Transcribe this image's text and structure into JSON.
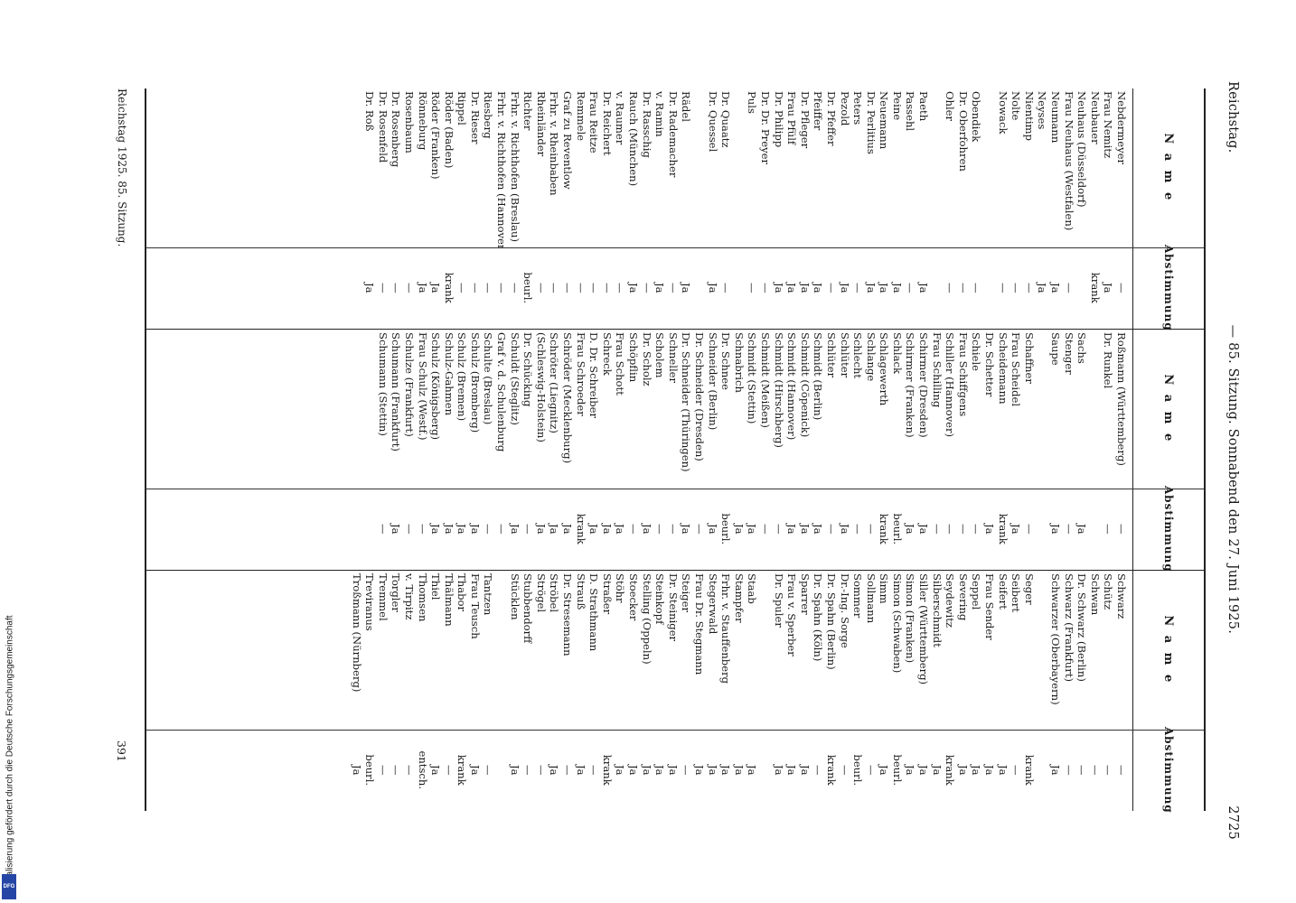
{
  "header": {
    "left": "Reichstag.",
    "center": "— 85. Sitzung. Sonnabend den 27. Juni 1925.",
    "page_number": "2725"
  },
  "column_header_name": "N a m e",
  "column_header_vote": "Abstimmung",
  "blocks": [
    [
      [
        "Nebdermeyer",
        "—"
      ],
      [
        "Frau Nemitz",
        "Ja"
      ],
      [
        "Neubauer",
        "krank"
      ],
      [
        "Neuhaus (Düsseldorf)",
        ""
      ],
      [
        "Frau Neuhaus (Westfalen)",
        "—"
      ],
      [
        "Neumann",
        "Ja"
      ],
      [
        "Neyses",
        "Ja"
      ],
      [
        "Nientimp",
        "—"
      ],
      [
        "Nolte",
        "—"
      ],
      [
        "Nowack",
        "—"
      ],
      [
        "",
        ""
      ],
      [
        "Obendiek",
        "—"
      ],
      [
        "Dr. Oberfohren",
        "—"
      ],
      [
        "Ohler",
        "—"
      ],
      [
        "",
        ""
      ],
      [
        "Paeth",
        "Ja"
      ],
      [
        "Passehl",
        "—"
      ],
      [
        "Peine",
        "Ja"
      ],
      [
        "Neuemann",
        "Ja"
      ],
      [
        "Dr. Perlitius",
        "Ja"
      ],
      [
        "Peters",
        "—"
      ],
      [
        "Pezold",
        "Ja"
      ],
      [
        "Dr. Pfeffer",
        "—"
      ],
      [
        "Pfeiffer",
        "Ja"
      ],
      [
        "Dr. Pfleger",
        "Ja"
      ],
      [
        "Frau Pfülf",
        "Ja"
      ],
      [
        "Dr. Philipp",
        "Ja"
      ],
      [
        "Dr. Dr. Preyer",
        "—"
      ],
      [
        "Puls",
        "—"
      ],
      [
        "",
        ""
      ],
      [
        "Dr. Quaatz",
        "—"
      ],
      [
        "Dr. Quessel",
        "Ja"
      ],
      [
        "",
        ""
      ],
      [
        "Rädel",
        "Ja"
      ],
      [
        "Dr. Rademacher",
        "—"
      ],
      [
        "v. Ramin",
        "Ja"
      ],
      [
        "Dr. Rasschig",
        "—"
      ],
      [
        "Rauch (München)",
        "Ja"
      ],
      [
        "v. Raumer",
        "—"
      ],
      [
        "Dr. Reichert",
        "—"
      ],
      [
        "Frau Reitze",
        "—"
      ],
      [
        "Remmele",
        "—"
      ],
      [
        "Graf zu Reventlow",
        "—"
      ],
      [
        "Frhr. v. Rheinbaben",
        "—"
      ],
      [
        "Rheinländer",
        "—"
      ],
      [
        "Richter",
        "beurl."
      ],
      [
        "Frhr. v. Richthofen (Breslau)",
        "—"
      ],
      [
        "Frhr. v. Richthofen (Hannover)",
        "—"
      ],
      [
        "Riesberg",
        "—"
      ],
      [
        "Dr. Rieser",
        "—"
      ],
      [
        "Rippel",
        "—"
      ],
      [
        "Röder (Baden)",
        "krank"
      ],
      [
        "Röder (Franken)",
        "Ja"
      ],
      [
        "Rönneburg",
        "Ja"
      ],
      [
        "Rosenbaum",
        "—"
      ],
      [
        "Dr. Rosenberg",
        "—"
      ],
      [
        "Dr. Rosenfeld",
        "—"
      ],
      [
        "Dr. Roß",
        "Ja"
      ]
    ],
    [
      [
        "Roßmann (Württemberg)",
        "—"
      ],
      [
        "Dr. Runkel",
        "—"
      ],
      [
        "",
        ""
      ],
      [
        "Sachs",
        "Ja"
      ],
      [
        "Stenger",
        "—"
      ],
      [
        "Saupe",
        "Ja"
      ],
      [
        "",
        ""
      ],
      [
        "Schaffner",
        "—"
      ],
      [
        "Frau Scheidel",
        "Ja"
      ],
      [
        "Scheidemann",
        "krank"
      ],
      [
        "Dr. Schetter",
        "Ja"
      ],
      [
        "Schiele",
        "—"
      ],
      [
        "Frau Schiffgens",
        "—"
      ],
      [
        "Schiller (Hannover)",
        "—"
      ],
      [
        "Frau Schilling",
        "—"
      ],
      [
        "Schirmer (Dresden)",
        "Ja"
      ],
      [
        "Schirmer (Franken)",
        "Ja"
      ],
      [
        "Schlack",
        "beurl."
      ],
      [
        "Schlagewerth",
        "krank"
      ],
      [
        "Schlange",
        "—"
      ],
      [
        "Schlecht",
        "—"
      ],
      [
        "Schlüter",
        "Ja"
      ],
      [
        "Schlüter",
        "—"
      ],
      [
        "Schmidt (Berlin)",
        "Ja"
      ],
      [
        "Schmidt (Cöpenick)",
        "Ja"
      ],
      [
        "Schmidt (Hannover)",
        "Ja"
      ],
      [
        "Schmidt (Hirschberg)",
        "—"
      ],
      [
        "Schmidt (Meißen)",
        "—"
      ],
      [
        "Schmidt (Stettin)",
        "Ja"
      ],
      [
        "Schnabrich",
        "Ja"
      ],
      [
        "Dr. Schnee",
        "beurl."
      ],
      [
        "Schneider (Berlin)",
        "Ja"
      ],
      [
        "Dr. Schneider (Dresden)",
        "—"
      ],
      [
        "Dr. Schneider (Thüringen)",
        "Ja"
      ],
      [
        "Schneller",
        "—"
      ],
      [
        "Scholem",
        "—"
      ],
      [
        "Dr. Scholz",
        "Ja"
      ],
      [
        "Schöpflin",
        "—"
      ],
      [
        "Frau Schott",
        "Ja"
      ],
      [
        "Schreck",
        "Ja"
      ],
      [
        "D. Dr. Schreiber",
        "Ja"
      ],
      [
        "Frau Schroeder",
        "krank"
      ],
      [
        "Schröder (Mecklenburg)",
        "Ja"
      ],
      [
        "Schröter (Liegnitz)",
        "Ja"
      ],
      [
        "(Schleswig-Holstein)",
        "Ja"
      ],
      [
        "Dr. Schücking",
        "—"
      ],
      [
        "Schuldt (Steglitz)",
        "Ja"
      ],
      [
        "Graf v. d. Schulenburg",
        "—"
      ],
      [
        "Schulte (Breslau)",
        "—"
      ],
      [
        "Schulz (Bromberg)",
        "Ja"
      ],
      [
        "Schulz (Bremen)",
        "Ja"
      ],
      [
        "Schulz-Gahmen",
        "Ja"
      ],
      [
        "Schulz (Königsberg)",
        "Ja"
      ],
      [
        "Frau Schulz (Westf.)",
        "—"
      ],
      [
        "Schulze (Frankfurt)",
        "—"
      ],
      [
        "Schumann (Frankfurt)",
        "Ja"
      ],
      [
        "Schumann (Stettin)",
        "—"
      ]
    ],
    [
      [
        "Schwarz",
        "—"
      ],
      [
        "Schütz",
        "—"
      ],
      [
        "Schwan",
        "—"
      ],
      [
        "Dr. Schwarz (Berlin)",
        "—"
      ],
      [
        "Schwarz (Frankfurt)",
        "—"
      ],
      [
        "Schwarzer (Oberbayern)",
        "Ja"
      ],
      [
        "",
        ""
      ],
      [
        "Seger",
        "krank"
      ],
      [
        "Seibert",
        "—"
      ],
      [
        "Seifert",
        "Ja"
      ],
      [
        "Frau Sender",
        "Ja"
      ],
      [
        "Seppel",
        "Ja"
      ],
      [
        "Severing",
        "Ja"
      ],
      [
        "Seydewitz",
        "krank"
      ],
      [
        "Silberschmidt",
        "Ja"
      ],
      [
        "Siller (Württemberg)",
        "Ja"
      ],
      [
        "Simon (Franken)",
        "Ja"
      ],
      [
        "Simon (Schwaben)",
        "beurl."
      ],
      [
        "Simm",
        "Ja"
      ],
      [
        "Sollmann",
        "—"
      ],
      [
        "Sommer",
        "beurl."
      ],
      [
        "Dr.-Ing. Sorge",
        "—"
      ],
      [
        "Dr. Spahn (Berlin)",
        "krank"
      ],
      [
        "Dr. Spahn (Köln)",
        "—"
      ],
      [
        "Sparrer",
        "Ja"
      ],
      [
        "Frau v. Sperber",
        "Ja"
      ],
      [
        "Dr. Spuler",
        "Ja"
      ],
      [
        "",
        ""
      ],
      [
        "Staab",
        "Ja"
      ],
      [
        "Stampfer",
        "Ja"
      ],
      [
        "Frhr. v. Stauffenberg",
        "Ja"
      ],
      [
        "Stegerwald",
        "Ja"
      ],
      [
        "Frau Dr. Stegmann",
        "Ja"
      ],
      [
        "Steiger",
        "—"
      ],
      [
        "Dr. Steiniger",
        "Ja"
      ],
      [
        "Steinkopf",
        "Ja"
      ],
      [
        "Stelling (Oppeln)",
        "Ja"
      ],
      [
        "Stoecker",
        "Ja"
      ],
      [
        "Stöhr",
        "Ja"
      ],
      [
        "Straßer",
        "krank"
      ],
      [
        "D. Strathmann",
        "—"
      ],
      [
        "Strauß",
        "Ja"
      ],
      [
        "Dr. Stresemann",
        "—"
      ],
      [
        "Ströbel",
        "Ja"
      ],
      [
        "Strögel",
        "—"
      ],
      [
        "Stubbendorff",
        "—"
      ],
      [
        "Stücklen",
        "Ja"
      ],
      [
        "",
        ""
      ],
      [
        "Tantzen",
        "—"
      ],
      [
        "Frau Teusch",
        "Ja"
      ],
      [
        "Thabor",
        "krank"
      ],
      [
        "Thälmann",
        "—"
      ],
      [
        "Thiel",
        "Ja"
      ],
      [
        "Thomsen",
        "entsch."
      ],
      [
        "v. Tirpitz",
        "—"
      ],
      [
        "Torgler",
        "—"
      ],
      [
        "Tremmel",
        "—"
      ],
      [
        "Treviranus",
        "beurl."
      ],
      [
        "Troßmann (Nürnberg)",
        "Ja"
      ]
    ]
  ],
  "footer": {
    "left": "Reichstag 1925. 85. Sitzung.",
    "right": "391"
  },
  "side_note": "Digitalisierung gefördert durch die Deutsche Forschungsgemeinschaft",
  "logo_text": "DFG"
}
